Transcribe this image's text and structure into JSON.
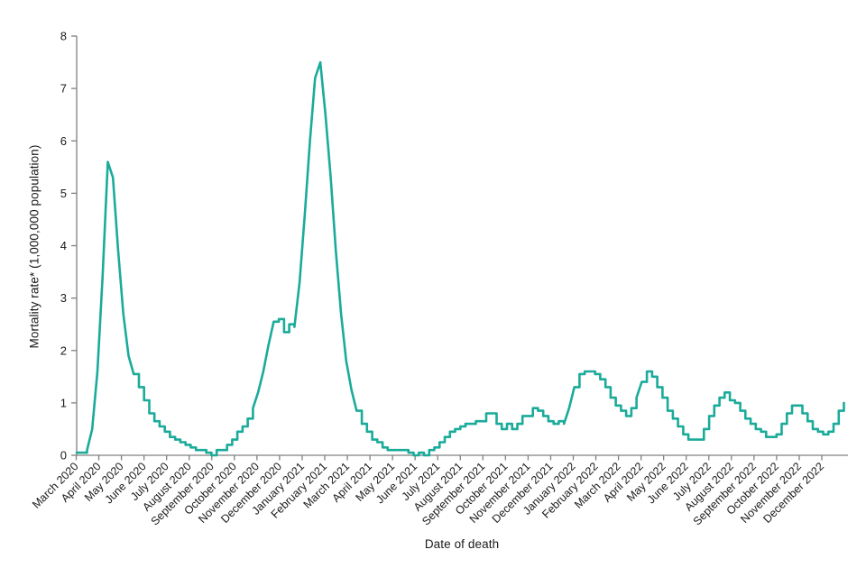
{
  "chart_data": {
    "type": "line",
    "title": "",
    "xlabel": "Date of death",
    "ylabel": "Mortality rate* (1,000,000 population)",
    "ylim": [
      0,
      8
    ],
    "yticks": [
      0,
      1,
      2,
      3,
      4,
      5,
      6,
      7,
      8
    ],
    "grid": false,
    "legend": false,
    "x_tick_labels": [
      "March 2020",
      "April 2020",
      "May 2020",
      "June 2020",
      "July 2020",
      "August 2020",
      "September 2020",
      "October 2020",
      "November 2020",
      "December 2020",
      "January 2021",
      "February 2021",
      "March 2021",
      "April 2021",
      "May 2021",
      "June 2021",
      "July 2021",
      "August 2021",
      "September 2021",
      "October 2021",
      "November 2021",
      "December 2021",
      "January 2022",
      "February 2022",
      "March 2022",
      "April 2022",
      "May 2022",
      "June 2022",
      "July 2022",
      "August 2022",
      "September 2022",
      "October 2022",
      "November 2022",
      "December 2022"
    ],
    "series": [
      {
        "name": "Mortality rate per 1,000,000 population",
        "x_start": "week beginning 1 March 2020",
        "x_step": "weekly",
        "values": [
          0.05,
          0.05,
          0.1,
          0.5,
          1.6,
          3.4,
          5.6,
          5.3,
          3.9,
          2.7,
          1.9,
          1.55,
          1.3,
          1.05,
          0.8,
          0.65,
          0.55,
          0.45,
          0.35,
          0.3,
          0.25,
          0.2,
          0.15,
          0.1,
          0.1,
          0.05,
          0,
          0.1,
          0.1,
          0.2,
          0.3,
          0.45,
          0.55,
          0.7,
          0.9,
          1.2,
          1.6,
          2.1,
          2.55,
          2.6,
          2.35,
          2.5,
          2.45,
          3.3,
          4.6,
          6.0,
          7.2,
          7.5,
          6.5,
          5.3,
          3.9,
          2.7,
          1.8,
          1.25,
          0.85,
          0.6,
          0.45,
          0.3,
          0.25,
          0.15,
          0.1,
          0.1,
          0.1,
          0.1,
          0.05,
          0,
          0.05,
          0,
          0.1,
          0.15,
          0.25,
          0.35,
          0.45,
          0.5,
          0.55,
          0.6,
          0.6,
          0.65,
          0.65,
          0.8,
          0.8,
          0.6,
          0.5,
          0.6,
          0.5,
          0.6,
          0.75,
          0.75,
          0.9,
          0.85,
          0.75,
          0.65,
          0.6,
          0.65,
          0.6,
          0.9,
          1.3,
          1.55,
          1.6,
          1.6,
          1.55,
          1.45,
          1.3,
          1.1,
          0.95,
          0.85,
          0.75,
          0.9,
          1.1,
          1.4,
          1.6,
          1.5,
          1.3,
          1.1,
          0.85,
          0.7,
          0.55,
          0.4,
          0.3,
          0.3,
          0.3,
          0.5,
          0.75,
          0.95,
          1.1,
          1.2,
          1.05,
          1.0,
          0.85,
          0.7,
          0.6,
          0.5,
          0.45,
          0.35,
          0.35,
          0.4,
          0.6,
          0.8,
          0.95,
          0.95,
          0.8,
          0.65,
          0.5,
          0.45,
          0.4,
          0.45,
          0.6,
          0.85,
          1.0
        ]
      }
    ]
  },
  "style": {
    "line_color": "#1aab9a",
    "axis_color": "#808080",
    "text_color": "#1a1a1a",
    "background": "#ffffff"
  }
}
